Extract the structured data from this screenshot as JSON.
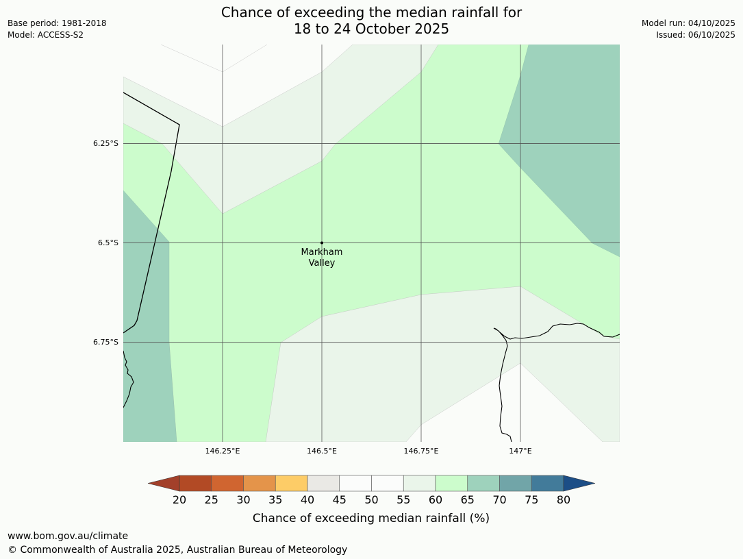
{
  "title": {
    "line1": "Chance of exceeding the median rainfall for",
    "line2": "18 to 24 October 2025"
  },
  "meta_left": {
    "base_period": "Base period: 1981-2018",
    "model": "Model: ACCESS-S2"
  },
  "meta_right": {
    "model_run": "Model run: 04/10/2025",
    "issued": "Issued: 06/10/2025"
  },
  "map": {
    "lat_labels": [
      "6.25°S",
      "6.5°S",
      "6.75°S"
    ],
    "lon_labels": [
      "146.25°E",
      "146.5°E",
      "146.75°E",
      "147°E"
    ],
    "place": {
      "line1": "Markham",
      "line2": "Valley"
    },
    "zone_colors": {
      "white": "#fafcf9",
      "p55_60": "#eaf5ea",
      "p60_65": "#ccfccc",
      "p65_70": "#9ed2bc"
    }
  },
  "colorbar": {
    "label": "Chance of exceeding median rainfall (%)",
    "ticks": [
      "20",
      "25",
      "30",
      "35",
      "40",
      "45",
      "50",
      "55",
      "60",
      "65",
      "70",
      "75",
      "80"
    ],
    "colors": [
      "#b24a25",
      "#d06530",
      "#e4944a",
      "#fdcc67",
      "#eae9e5",
      "#fbfcfb",
      "#fbfcfb",
      "#eaf5ea",
      "#ccfccc",
      "#9ed2bc",
      "#71a5a8",
      "#427b9a"
    ],
    "under_color": "#a3402a",
    "over_color": "#1c4e86"
  },
  "footer": {
    "url": "www.bom.gov.au/climate",
    "copyright": "© Commonwealth of Australia 2025, Australian Bureau of Meteorology"
  }
}
